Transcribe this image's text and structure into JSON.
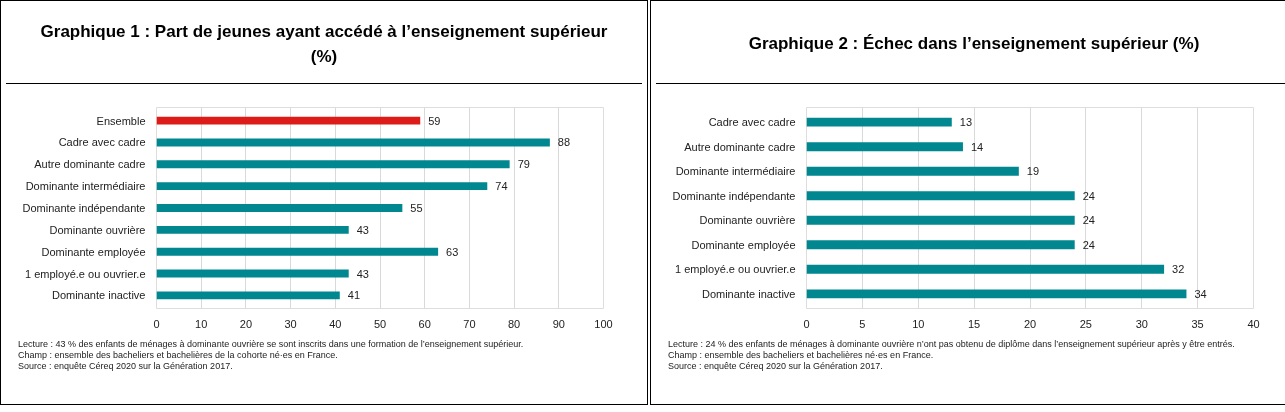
{
  "chart_data": [
    {
      "type": "bar",
      "orientation": "horizontal",
      "title": "Graphique 1 : Part de jeunes ayant accédé à l’enseignement supérieur (%)",
      "categories": [
        "Ensemble",
        "Cadre avec cadre",
        "Autre dominante cadre",
        "Dominante intermédiaire",
        "Dominante indépendante",
        "Dominante ouvrière",
        "Dominante employée",
        "1 employé.e ou ouvrier.e",
        "Dominante inactive"
      ],
      "values": [
        59,
        88,
        79,
        74,
        55,
        43,
        63,
        43,
        41
      ],
      "colors": [
        "#dd1c1a",
        "#00878f",
        "#00878f",
        "#00878f",
        "#00878f",
        "#00878f",
        "#00878f",
        "#00878f",
        "#00878f"
      ],
      "xlim": [
        0,
        100
      ],
      "xticks": [
        0,
        10,
        20,
        30,
        40,
        50,
        60,
        70,
        80,
        90,
        100
      ],
      "grid": "x",
      "data_labels": true,
      "annotations": [
        "Lecture : 43 % des enfants de ménages à dominante ouvrière se sont inscrits dans une formation de l’enseignement supérieur.",
        "Champ : ensemble des bacheliers et bachelières de la cohorte né·es en France.",
        "Source : enquête Céreq 2020 sur la Génération 2017."
      ]
    },
    {
      "type": "bar",
      "orientation": "horizontal",
      "title": "Graphique 2 : Échec dans l’enseignement supérieur (%)",
      "categories": [
        "Cadre avec cadre",
        "Autre dominante cadre",
        "Dominante intermédiaire",
        "Dominante indépendante",
        "Dominante ouvrière",
        "Dominante employée",
        "1 employé.e ou ouvrier.e",
        "Dominante inactive"
      ],
      "values": [
        13,
        14,
        19,
        24,
        24,
        24,
        32,
        34
      ],
      "colors": [
        "#00878f",
        "#00878f",
        "#00878f",
        "#00878f",
        "#00878f",
        "#00878f",
        "#00878f",
        "#00878f"
      ],
      "xlim": [
        0,
        40
      ],
      "xticks": [
        0,
        5,
        10,
        15,
        20,
        25,
        30,
        35,
        40
      ],
      "grid": "x",
      "data_labels": true,
      "annotations": [
        "Lecture : 24 % des enfants de ménages à dominante ouvrière n’ont pas obtenu de diplôme dans l’enseignement supérieur après y être entrés.",
        "Champ : ensemble des bacheliers et bachelières né·es en France.",
        "Source : enquête Céreq 2020 sur la Génération 2017."
      ]
    }
  ]
}
